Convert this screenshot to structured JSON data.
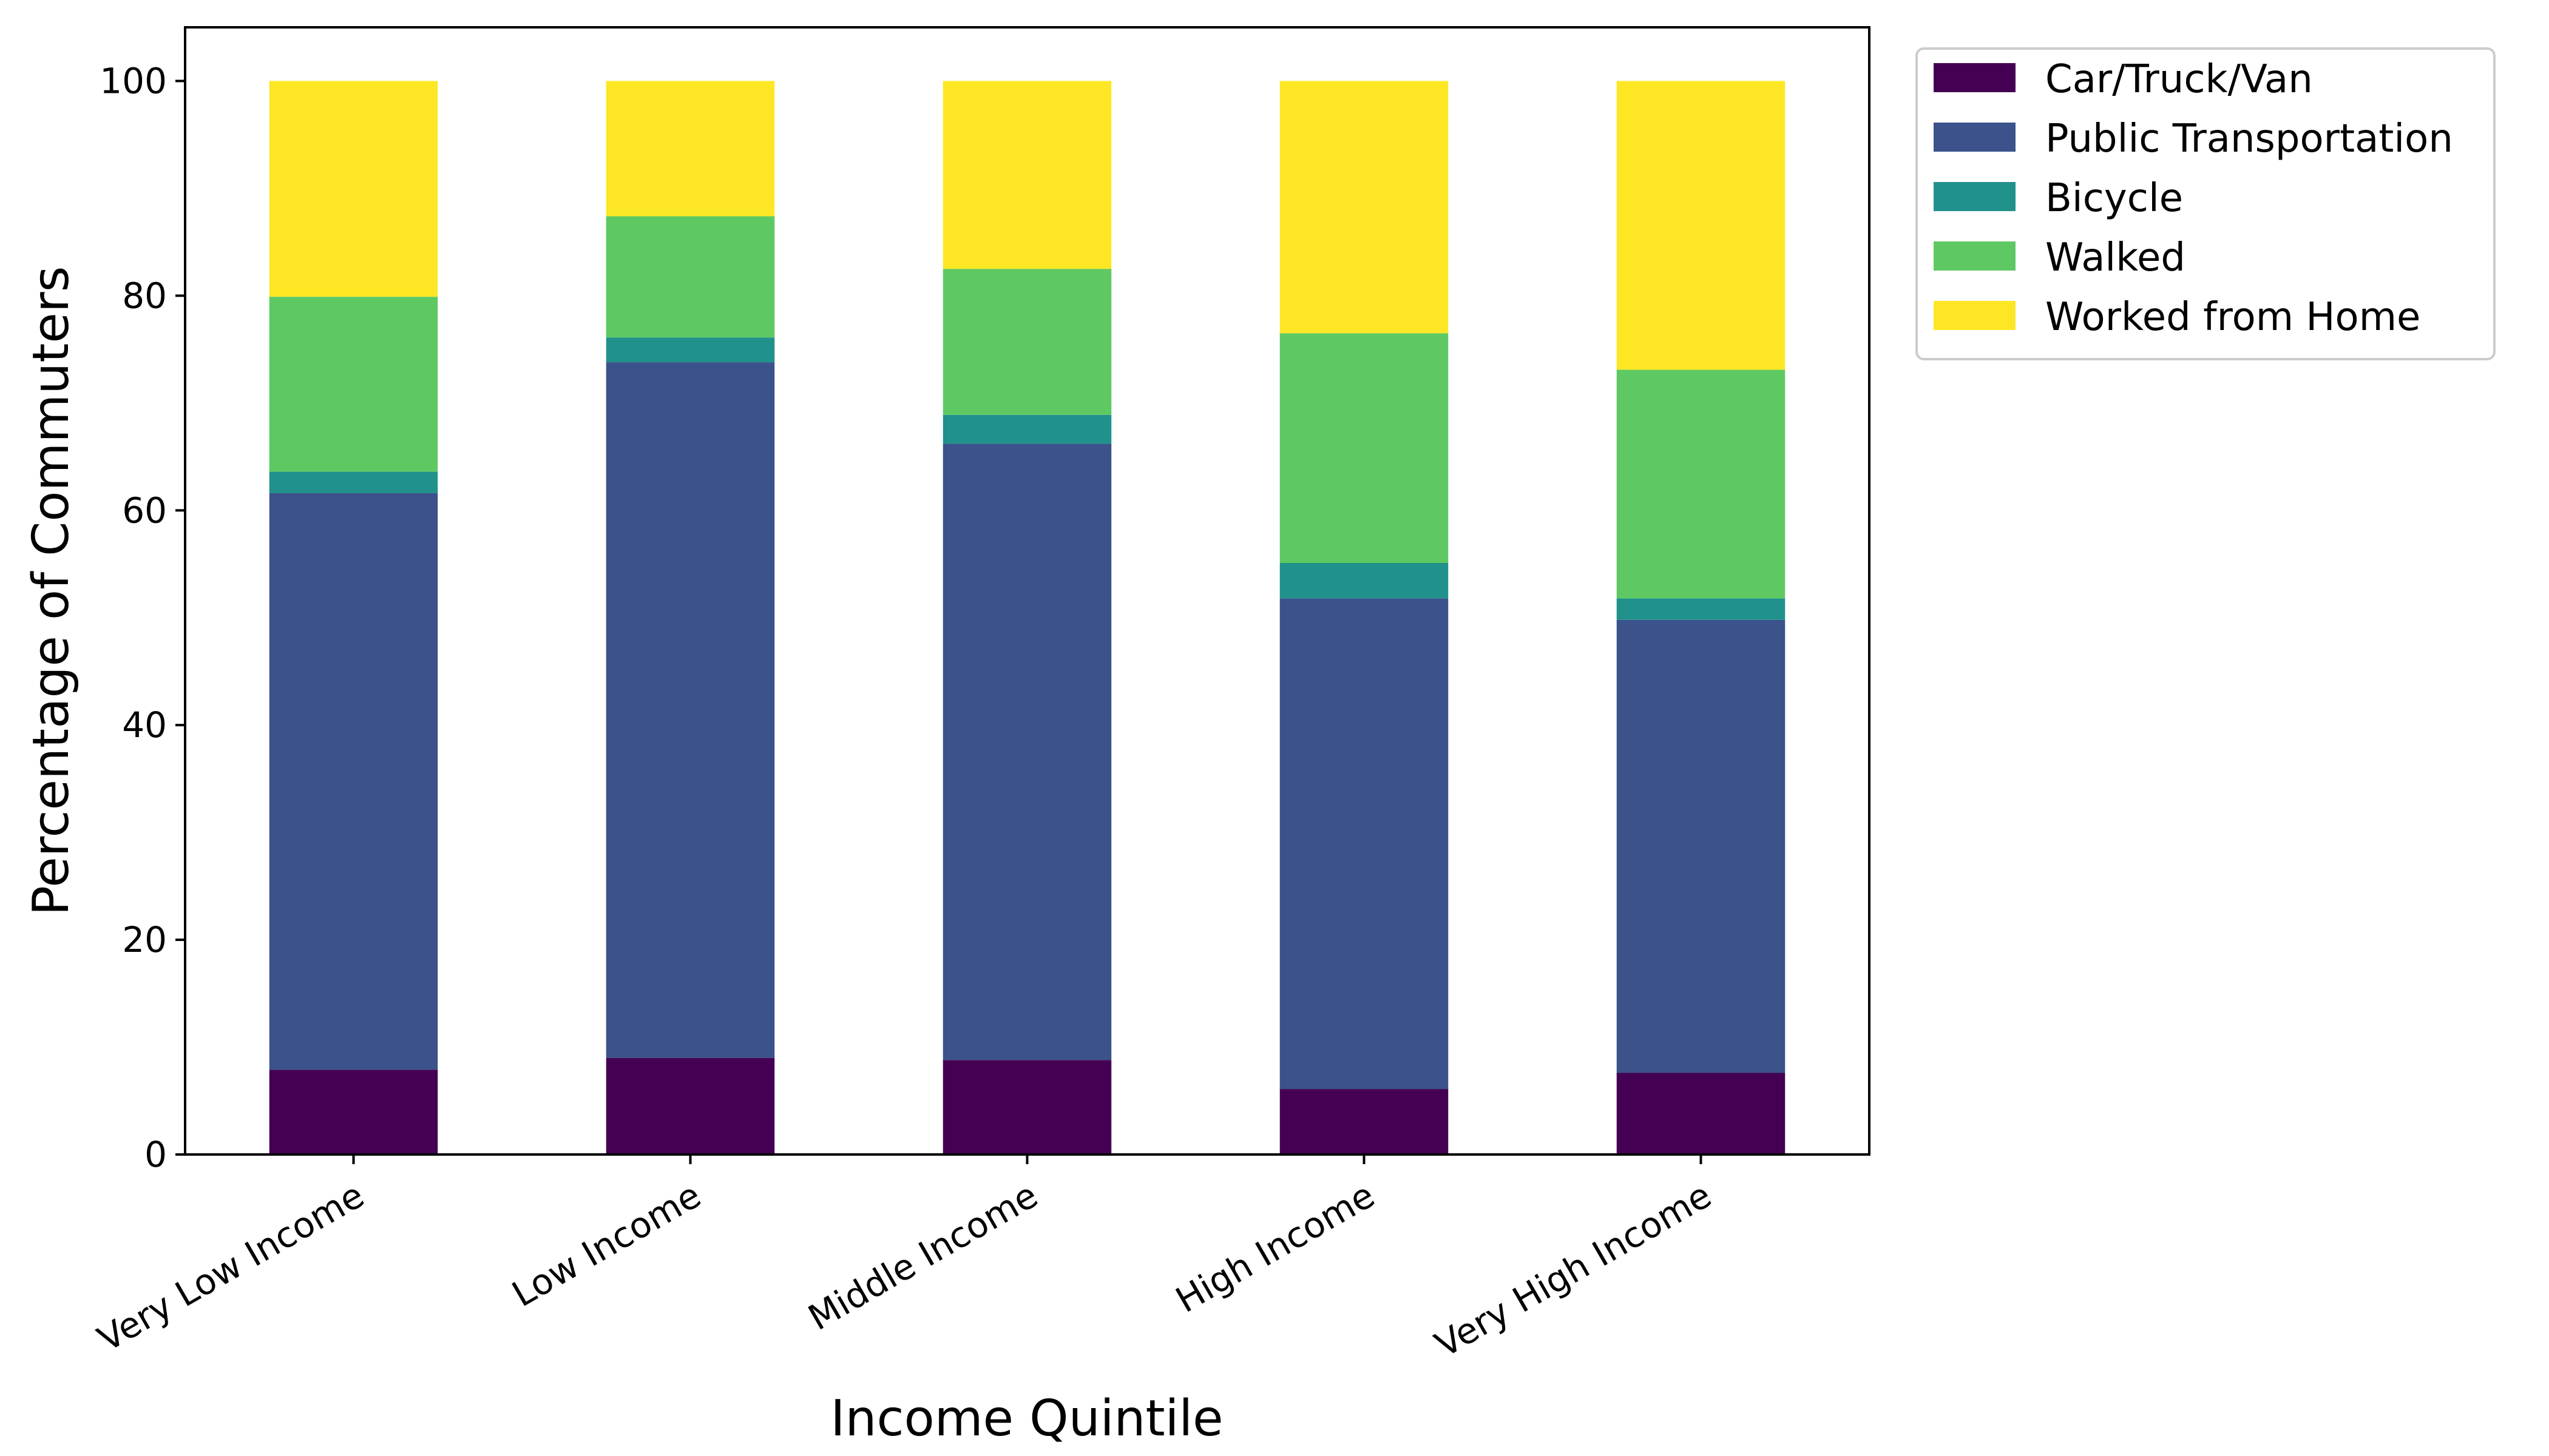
{
  "chart_data": {
    "type": "bar",
    "stacked": true,
    "categories": [
      "Very Low Income",
      "Low Income",
      "Middle Income",
      "High Income",
      "Very High Income"
    ],
    "series": [
      {
        "name": "Car/Truck/Van",
        "color": "#440154",
        "values": [
          7.9,
          9.0,
          8.8,
          6.1,
          7.6
        ]
      },
      {
        "name": "Public Transportation",
        "color": "#3b528b",
        "values": [
          53.7,
          64.8,
          57.4,
          45.7,
          42.2
        ]
      },
      {
        "name": "Bicycle",
        "color": "#21918c",
        "values": [
          2.0,
          2.3,
          2.7,
          3.3,
          2.0
        ]
      },
      {
        "name": "Walked",
        "color": "#5ec962",
        "values": [
          16.3,
          11.3,
          13.6,
          21.4,
          21.3
        ]
      },
      {
        "name": "Worked from Home",
        "color": "#fde725",
        "values": [
          20.1,
          12.6,
          17.5,
          23.5,
          26.9
        ]
      }
    ],
    "xlabel": "Income Quintile",
    "ylabel": "Percentage of Commuters",
    "ylim": [
      0,
      105
    ],
    "yticks": [
      0,
      20,
      40,
      60,
      80,
      100
    ],
    "grid": false,
    "legend_position": "outside-top-right"
  }
}
